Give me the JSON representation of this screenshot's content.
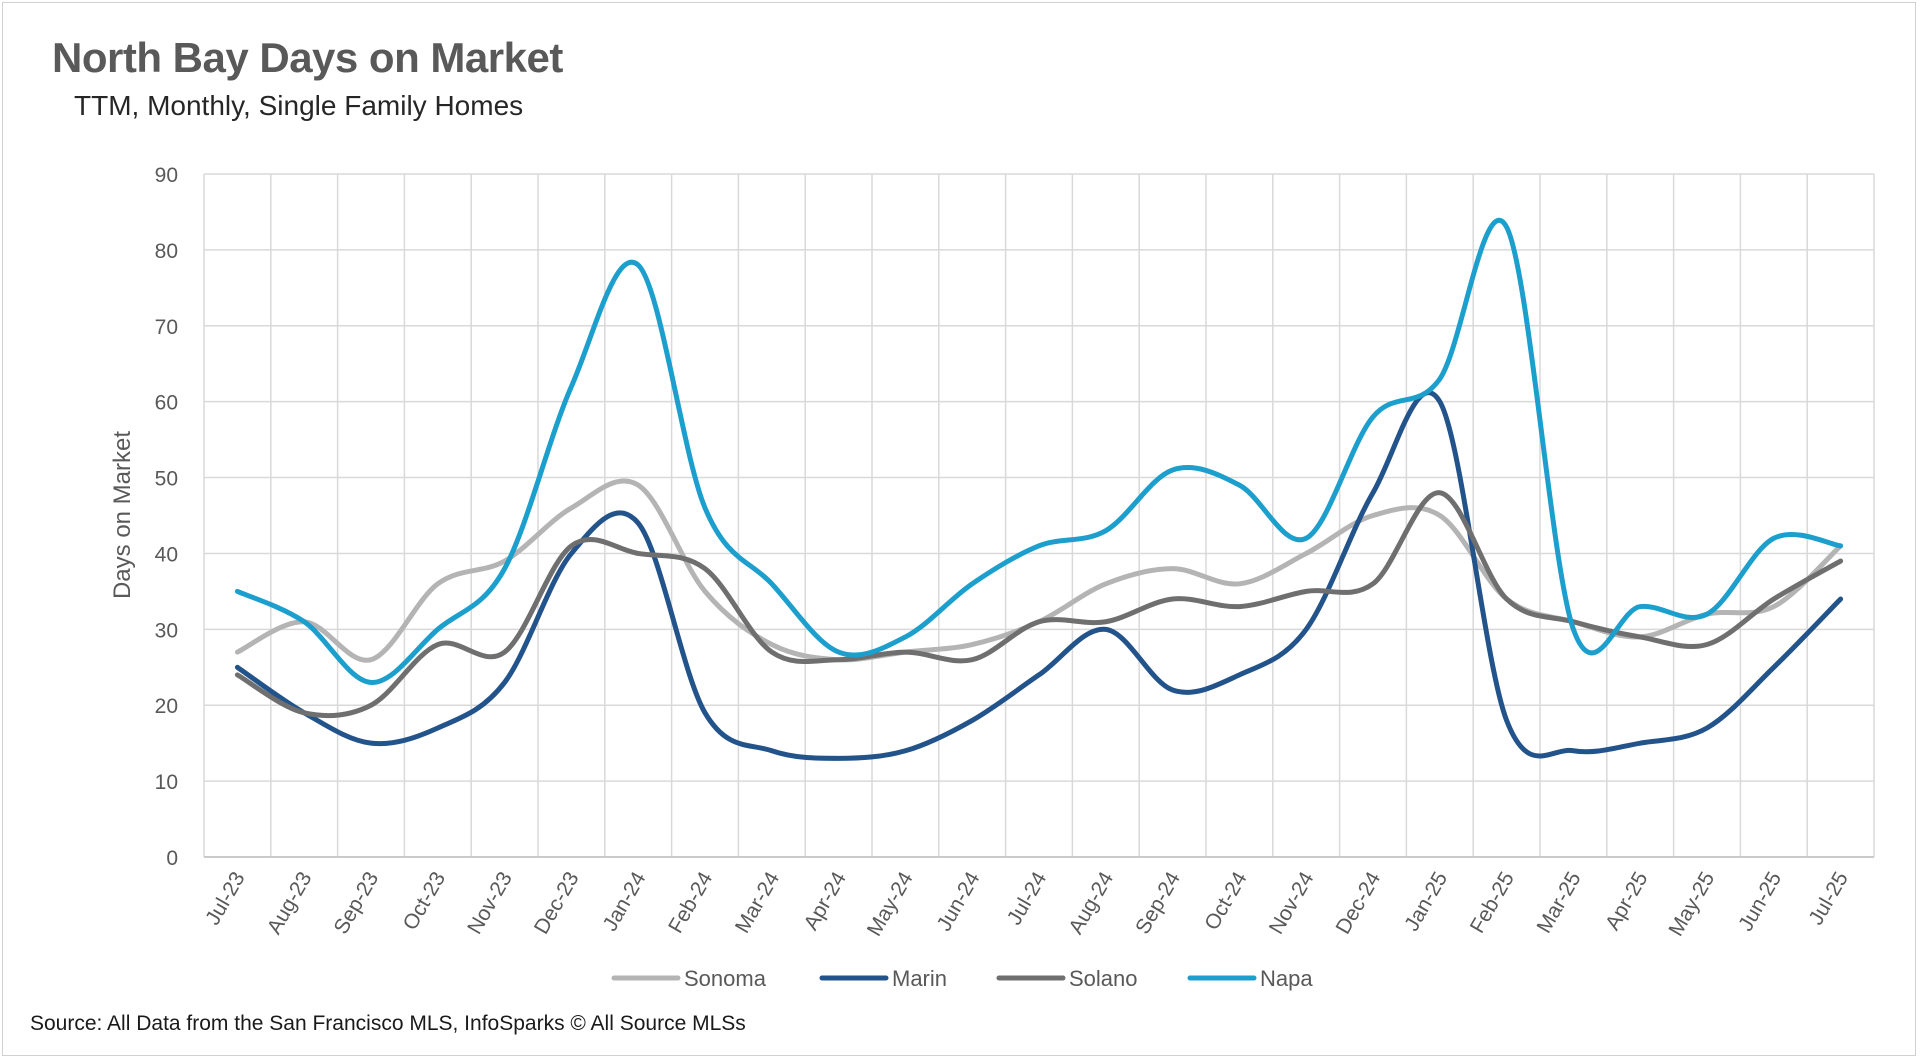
{
  "header": {
    "title": "North Bay Days on Market",
    "subtitle": "TTM, Monthly, Single Family Homes"
  },
  "footer": {
    "source": "Source: All Data from the San Francisco MLS, InfoSparks © All Source MLSs"
  },
  "chart_data": {
    "type": "line",
    "ylabel": "Days on Market",
    "xlabel": "",
    "ylim": [
      0,
      90
    ],
    "yticks": [
      0,
      10,
      20,
      30,
      40,
      50,
      60,
      70,
      80,
      90
    ],
    "grid": true,
    "legend_position": "bottom",
    "categories": [
      "Jul-23",
      "Aug-23",
      "Sep-23",
      "Oct-23",
      "Nov-23",
      "Dec-23",
      "Jan-24",
      "Feb-24",
      "Mar-24",
      "Apr-24",
      "May-24",
      "Jun-24",
      "Jul-24",
      "Aug-24",
      "Sep-24",
      "Oct-24",
      "Nov-24",
      "Dec-24",
      "Jan-25",
      "Feb-25",
      "Mar-25",
      "Apr-25",
      "May-25",
      "Jun-25",
      "Jul-25"
    ],
    "series": [
      {
        "name": "Sonoma",
        "color": "#b4b4b4",
        "values": [
          27,
          31,
          26,
          36,
          39,
          46,
          49,
          35,
          28,
          26,
          27,
          28,
          31,
          36,
          38,
          36,
          40,
          45,
          45,
          34,
          31,
          29,
          32,
          33,
          41
        ]
      },
      {
        "name": "Marin",
        "color": "#22538a",
        "values": [
          25,
          19,
          15,
          17,
          23,
          40,
          44,
          19,
          14,
          13,
          14,
          18,
          24,
          30,
          22,
          24,
          30,
          48,
          60,
          18,
          14,
          15,
          17,
          25,
          34
        ]
      },
      {
        "name": "Solano",
        "color": "#6f6f6f",
        "values": [
          24,
          19,
          20,
          28,
          27,
          41,
          40,
          38,
          27,
          26,
          27,
          26,
          31,
          31,
          34,
          33,
          35,
          36,
          48,
          34,
          31,
          29,
          28,
          34,
          39
        ]
      },
      {
        "name": "Napa",
        "color": "#1d9fcd",
        "values": [
          35,
          31,
          23,
          30,
          38,
          62,
          78,
          46,
          36,
          27,
          29,
          36,
          41,
          43,
          51,
          49,
          42,
          58,
          63,
          83,
          30,
          33,
          32,
          42,
          41
        ]
      }
    ]
  }
}
